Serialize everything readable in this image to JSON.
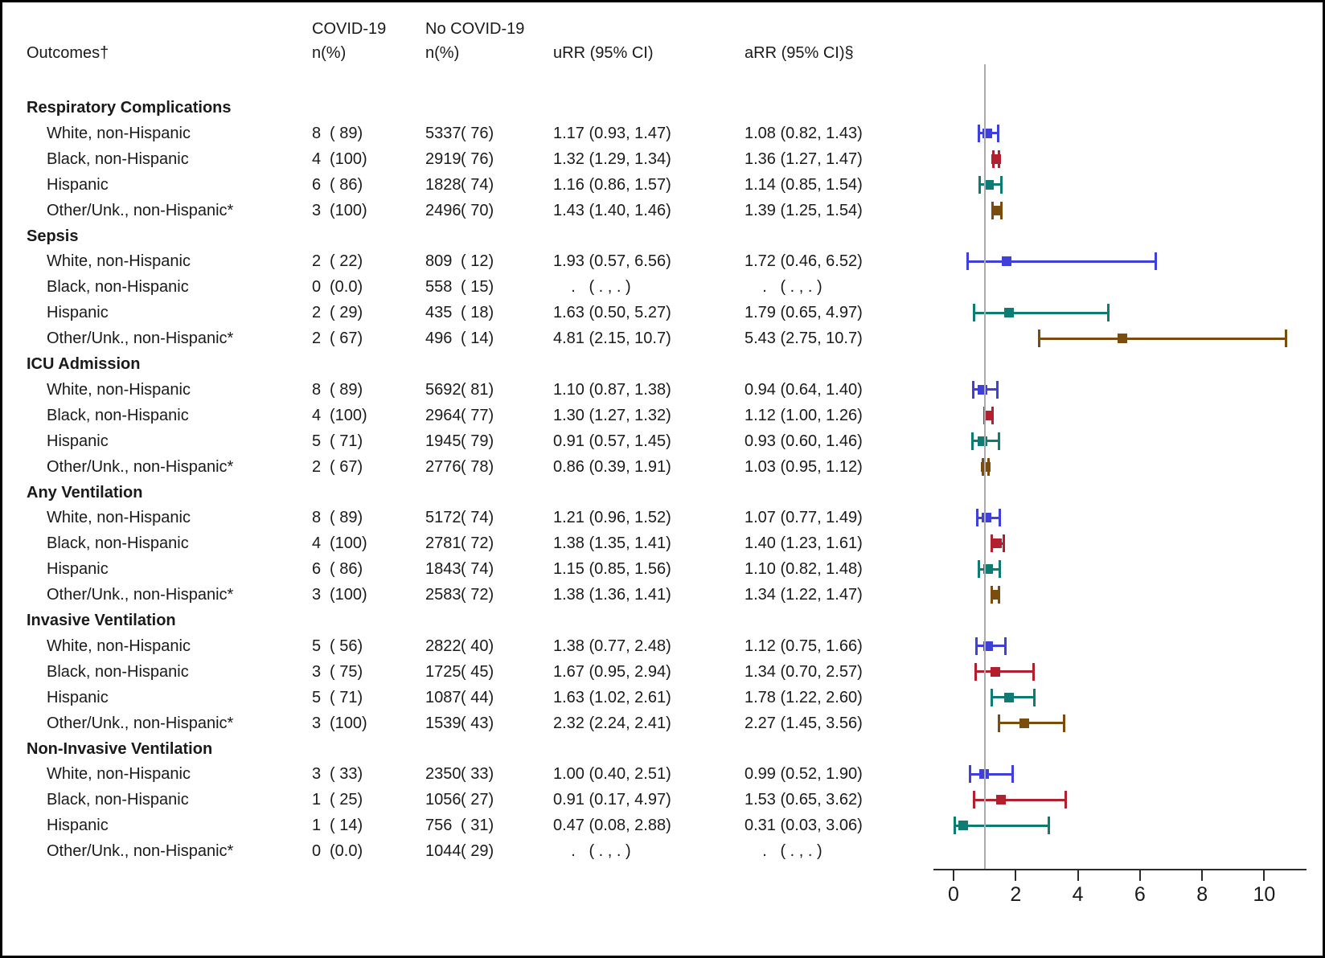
{
  "header": {
    "outcomes": "Outcomes†",
    "covid_line1": "COVID-19",
    "covid_line2": "n(%)",
    "nocovid_line1": "No COVID-19",
    "nocovid_line2": "n(%)",
    "urr": "uRR (95% CI)",
    "arr": "aRR (95% CI)§"
  },
  "colors": {
    "white_nh": "#3f3fd9",
    "black_nh": "#b22030",
    "hispanic": "#0e7c72",
    "other_nh": "#7a4d0f",
    "ref_line": "#ababab",
    "axis": "#2b2b2b"
  },
  "missing_value_text": "    .   ( . , . )",
  "chart_data": {
    "type": "forest",
    "plotted_measure": "aRR (95% CI)",
    "ref_value": 1,
    "axis": {
      "ticks": [
        0,
        2,
        4,
        6,
        8,
        10
      ],
      "xlim_px_note": "linear scale 0-10, grid off, single gray reference line at 1"
    },
    "sections": [
      {
        "label": "Respiratory Complications",
        "rows": [
          {
            "label": "White, non-Hispanic",
            "group": "white_nh",
            "covid_n": "8",
            "covid_pct": "( 89)",
            "nocovid_n": "5337",
            "nocovid_pct": "( 76)",
            "urr": "1.17 (0.93, 1.47)",
            "arr": "1.08 (0.82, 1.43)",
            "est": 1.08,
            "lo": 0.82,
            "hi": 1.43
          },
          {
            "label": "Black, non-Hispanic",
            "group": "black_nh",
            "covid_n": "4",
            "covid_pct": "(100)",
            "nocovid_n": "2919",
            "nocovid_pct": "( 76)",
            "urr": "1.32 (1.29, 1.34)",
            "arr": "1.36 (1.27, 1.47)",
            "est": 1.36,
            "lo": 1.27,
            "hi": 1.47
          },
          {
            "label": "Hispanic",
            "group": "hispanic",
            "covid_n": "6",
            "covid_pct": "( 86)",
            "nocovid_n": "1828",
            "nocovid_pct": "( 74)",
            "urr": "1.16 (0.86, 1.57)",
            "arr": "1.14 (0.85, 1.54)",
            "est": 1.14,
            "lo": 0.85,
            "hi": 1.54
          },
          {
            "label": "Other/Unk., non-Hispanic*",
            "group": "other_nh",
            "covid_n": "3",
            "covid_pct": "(100)",
            "nocovid_n": "2496",
            "nocovid_pct": "( 70)",
            "urr": "1.43 (1.40, 1.46)",
            "arr": "1.39 (1.25, 1.54)",
            "est": 1.39,
            "lo": 1.25,
            "hi": 1.54
          }
        ]
      },
      {
        "label": "Sepsis",
        "rows": [
          {
            "label": "White, non-Hispanic",
            "group": "white_nh",
            "covid_n": "2",
            "covid_pct": "( 22)",
            "nocovid_n": "809",
            "nocovid_pct": "( 12)",
            "urr": "1.93 (0.57, 6.56)",
            "arr": "1.72 (0.46, 6.52)",
            "est": 1.72,
            "lo": 0.46,
            "hi": 6.52
          },
          {
            "label": "Black, non-Hispanic",
            "group": "black_nh",
            "covid_n": "0",
            "covid_pct": "(0.0)",
            "nocovid_n": "558",
            "nocovid_pct": "( 15)",
            "urr": null,
            "arr": null,
            "est": null,
            "lo": null,
            "hi": null
          },
          {
            "label": "Hispanic",
            "group": "hispanic",
            "covid_n": "2",
            "covid_pct": "( 29)",
            "nocovid_n": "435",
            "nocovid_pct": "( 18)",
            "urr": "1.63 (0.50, 5.27)",
            "arr": "1.79 (0.65, 4.97)",
            "est": 1.79,
            "lo": 0.65,
            "hi": 4.97
          },
          {
            "label": "Other/Unk., non-Hispanic*",
            "group": "other_nh",
            "covid_n": "2",
            "covid_pct": "( 67)",
            "nocovid_n": "496",
            "nocovid_pct": "( 14)",
            "urr": "4.81 (2.15, 10.7)",
            "arr": "5.43 (2.75, 10.7)",
            "est": 5.43,
            "lo": 2.75,
            "hi": 10.7
          }
        ]
      },
      {
        "label": "ICU Admission",
        "rows": [
          {
            "label": "White, non-Hispanic",
            "group": "white_nh",
            "covid_n": "8",
            "covid_pct": "( 89)",
            "nocovid_n": "5692",
            "nocovid_pct": "( 81)",
            "urr": "1.10 (0.87, 1.38)",
            "arr": "0.94 (0.64, 1.40)",
            "est": 0.94,
            "lo": 0.64,
            "hi": 1.4
          },
          {
            "label": "Black, non-Hispanic",
            "group": "black_nh",
            "covid_n": "4",
            "covid_pct": "(100)",
            "nocovid_n": "2964",
            "nocovid_pct": "( 77)",
            "urr": "1.30 (1.27, 1.32)",
            "arr": "1.12 (1.00, 1.26)",
            "est": 1.12,
            "lo": 1.0,
            "hi": 1.26
          },
          {
            "label": "Hispanic",
            "group": "hispanic",
            "covid_n": "5",
            "covid_pct": "( 71)",
            "nocovid_n": "1945",
            "nocovid_pct": "( 79)",
            "urr": "0.91 (0.57, 1.45)",
            "arr": "0.93 (0.60, 1.46)",
            "est": 0.93,
            "lo": 0.6,
            "hi": 1.46
          },
          {
            "label": "Other/Unk., non-Hispanic*",
            "group": "other_nh",
            "covid_n": "2",
            "covid_pct": "( 67)",
            "nocovid_n": "2776",
            "nocovid_pct": "( 78)",
            "urr": "0.86 (0.39, 1.91)",
            "arr": "1.03 (0.95, 1.12)",
            "est": 1.03,
            "lo": 0.95,
            "hi": 1.12
          }
        ]
      },
      {
        "label": "Any Ventilation",
        "rows": [
          {
            "label": "White, non-Hispanic",
            "group": "white_nh",
            "covid_n": "8",
            "covid_pct": "( 89)",
            "nocovid_n": "5172",
            "nocovid_pct": "( 74)",
            "urr": "1.21 (0.96, 1.52)",
            "arr": "1.07 (0.77, 1.49)",
            "est": 1.07,
            "lo": 0.77,
            "hi": 1.49
          },
          {
            "label": "Black, non-Hispanic",
            "group": "black_nh",
            "covid_n": "4",
            "covid_pct": "(100)",
            "nocovid_n": "2781",
            "nocovid_pct": "( 72)",
            "urr": "1.38 (1.35, 1.41)",
            "arr": "1.40 (1.23, 1.61)",
            "est": 1.4,
            "lo": 1.23,
            "hi": 1.61
          },
          {
            "label": "Hispanic",
            "group": "hispanic",
            "covid_n": "6",
            "covid_pct": "( 86)",
            "nocovid_n": "1843",
            "nocovid_pct": "( 74)",
            "urr": "1.15 (0.85, 1.56)",
            "arr": "1.10 (0.82, 1.48)",
            "est": 1.1,
            "lo": 0.82,
            "hi": 1.48
          },
          {
            "label": "Other/Unk., non-Hispanic*",
            "group": "other_nh",
            "covid_n": "3",
            "covid_pct": "(100)",
            "nocovid_n": "2583",
            "nocovid_pct": "( 72)",
            "urr": "1.38 (1.36, 1.41)",
            "arr": "1.34 (1.22, 1.47)",
            "est": 1.34,
            "lo": 1.22,
            "hi": 1.47
          }
        ]
      },
      {
        "label": "Invasive Ventilation",
        "rows": [
          {
            "label": "White, non-Hispanic",
            "group": "white_nh",
            "covid_n": "5",
            "covid_pct": "( 56)",
            "nocovid_n": "2822",
            "nocovid_pct": "( 40)",
            "urr": "1.38 (0.77, 2.48)",
            "arr": "1.12 (0.75, 1.66)",
            "est": 1.12,
            "lo": 0.75,
            "hi": 1.66
          },
          {
            "label": "Black, non-Hispanic",
            "group": "black_nh",
            "covid_n": "3",
            "covid_pct": "( 75)",
            "nocovid_n": "1725",
            "nocovid_pct": "( 45)",
            "urr": "1.67 (0.95, 2.94)",
            "arr": "1.34 (0.70, 2.57)",
            "est": 1.34,
            "lo": 0.7,
            "hi": 2.57
          },
          {
            "label": "Hispanic",
            "group": "hispanic",
            "covid_n": "5",
            "covid_pct": "( 71)",
            "nocovid_n": "1087",
            "nocovid_pct": "( 44)",
            "urr": "1.63 (1.02, 2.61)",
            "arr": "1.78 (1.22, 2.60)",
            "est": 1.78,
            "lo": 1.22,
            "hi": 2.6
          },
          {
            "label": "Other/Unk., non-Hispanic*",
            "group": "other_nh",
            "covid_n": "3",
            "covid_pct": "(100)",
            "nocovid_n": "1539",
            "nocovid_pct": "( 43)",
            "urr": "2.32 (2.24, 2.41)",
            "arr": "2.27 (1.45, 3.56)",
            "est": 2.27,
            "lo": 1.45,
            "hi": 3.56
          }
        ]
      },
      {
        "label": "Non-Invasive Ventilation",
        "rows": [
          {
            "label": "White, non-Hispanic",
            "group": "white_nh",
            "covid_n": "3",
            "covid_pct": "( 33)",
            "nocovid_n": "2350",
            "nocovid_pct": "( 33)",
            "urr": "1.00 (0.40, 2.51)",
            "arr": "0.99 (0.52, 1.90)",
            "est": 0.99,
            "lo": 0.52,
            "hi": 1.9
          },
          {
            "label": "Black, non-Hispanic",
            "group": "black_nh",
            "covid_n": "1",
            "covid_pct": "( 25)",
            "nocovid_n": "1056",
            "nocovid_pct": "( 27)",
            "urr": "0.91 (0.17, 4.97)",
            "arr": "1.53 (0.65, 3.62)",
            "est": 1.53,
            "lo": 0.65,
            "hi": 3.62
          },
          {
            "label": "Hispanic",
            "group": "hispanic",
            "covid_n": "1",
            "covid_pct": "( 14)",
            "nocovid_n": "756",
            "nocovid_pct": "( 31)",
            "urr": "0.47 (0.08, 2.88)",
            "arr": "0.31 (0.03, 3.06)",
            "est": 0.31,
            "lo": 0.03,
            "hi": 3.06
          },
          {
            "label": "Other/Unk., non-Hispanic*",
            "group": "other_nh",
            "covid_n": "0",
            "covid_pct": "(0.0)",
            "nocovid_n": "1044",
            "nocovid_pct": "( 29)",
            "urr": null,
            "arr": null,
            "est": null,
            "lo": null,
            "hi": null
          }
        ]
      }
    ]
  }
}
